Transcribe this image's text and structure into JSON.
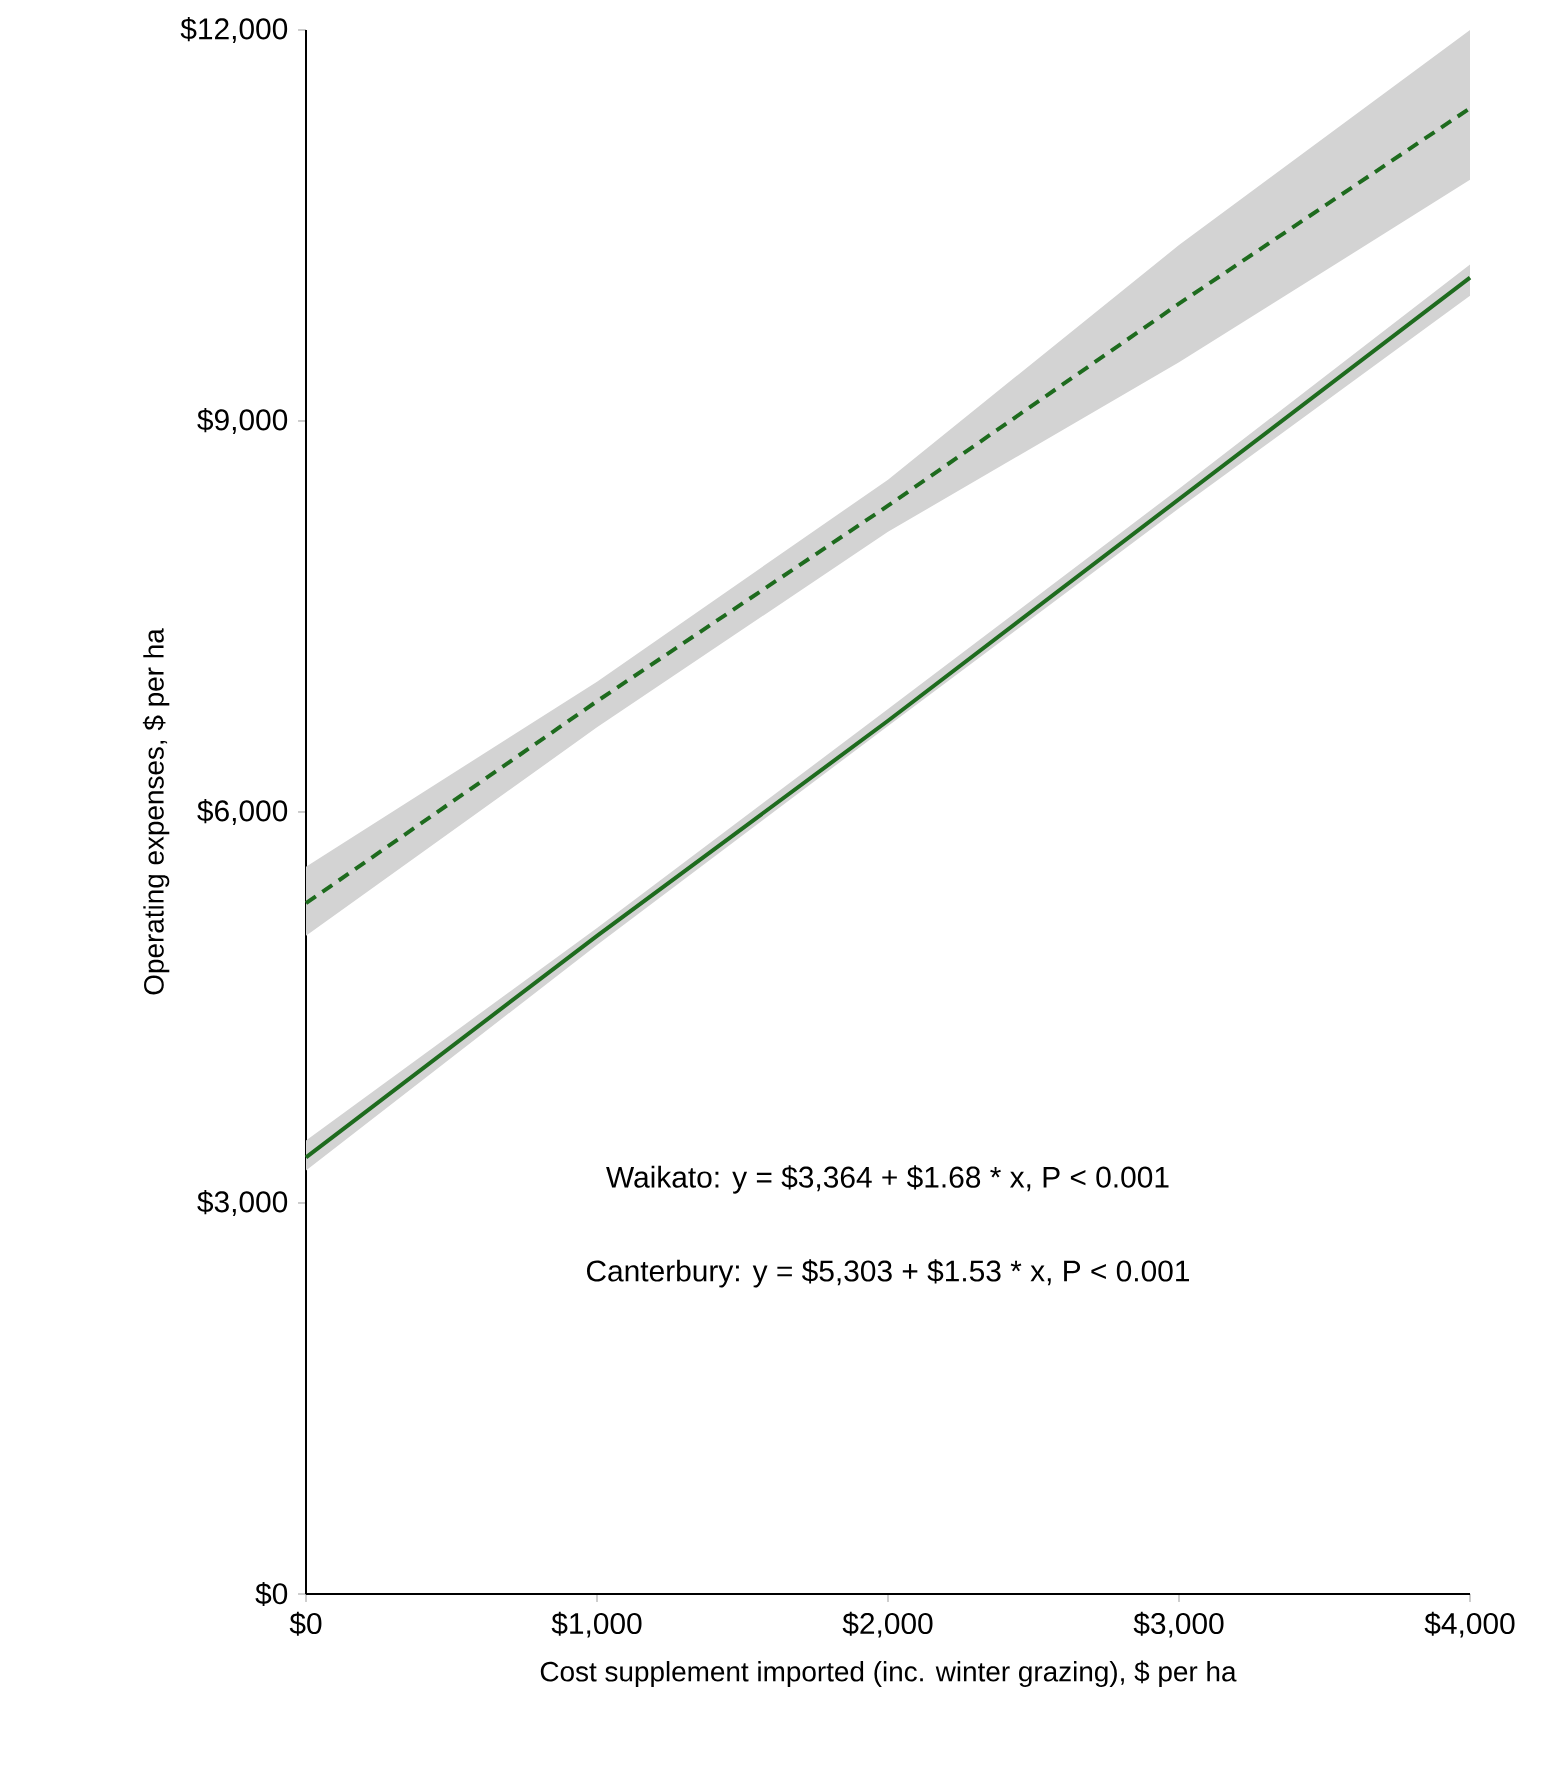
{
  "chart_data": {
    "type": "line",
    "xlabel": "Cost supplement imported (inc. winter grazing), $ per ha",
    "ylabel": "Operating expenses, $ per ha",
    "x": [
      0,
      1000,
      2000,
      3000,
      4000
    ],
    "series": [
      {
        "color": "#1e6b1e",
        "line_style": "solid",
        "values": [
          3350,
          5050,
          6700,
          8400,
          10100
        ],
        "lower": [
          3250,
          4980,
          6660,
          8330,
          9960
        ],
        "upper": [
          3480,
          5110,
          6790,
          8480,
          10200
        ]
      },
      {
        "color": "#1e6b1e",
        "line_style": "dashed",
        "values": [
          5300,
          6850,
          8350,
          9900,
          11400
        ],
        "lower": [
          5050,
          6650,
          8150,
          9450,
          10850
        ],
        "upper": [
          5580,
          7000,
          8550,
          10350,
          12000
        ]
      }
    ],
    "xlim": [
      0,
      4000
    ],
    "ylim": [
      0,
      12000
    ],
    "xticks": [
      {
        "value": 0,
        "label": "$0"
      },
      {
        "value": 1000,
        "label": "$1,000"
      },
      {
        "value": 2000,
        "label": "$2,000"
      },
      {
        "value": 3000,
        "label": "$3,000"
      },
      {
        "value": 4000,
        "label": "$4,000"
      }
    ],
    "yticks": [
      {
        "value": 0,
        "label": "$0"
      },
      {
        "value": 3000,
        "label": "$3,000"
      },
      {
        "value": 6000,
        "label": "$6,000"
      },
      {
        "value": 9000,
        "label": "$9,000"
      },
      {
        "value": 12000,
        "label": "$12,000"
      }
    ],
    "grid": false,
    "marker": "none",
    "annotations": [
      "Waikato: y = $3,364 + $1.68 * x, P < 0.001",
      "Canterbury: y = $5,303 + $1.53 * x, P < 0.001"
    ]
  }
}
